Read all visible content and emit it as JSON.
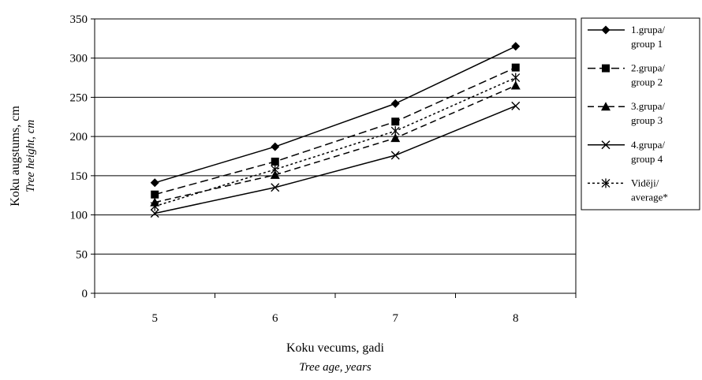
{
  "chart_data": {
    "type": "line",
    "x": [
      5,
      6,
      7,
      8
    ],
    "xlabel": "Koku vecums, gadi",
    "xlabel_sub": "Tree age, years",
    "ylabel": "Koku augstums, cm",
    "ylabel_sub": "Tree height, cm",
    "ylim": [
      0,
      350
    ],
    "yticks": [
      0,
      50,
      100,
      150,
      200,
      250,
      300,
      350
    ],
    "grid": "horizontal",
    "legend_position": "right",
    "series": [
      {
        "name_line1": "1.grupa/",
        "name_line2": "group 1",
        "values": [
          141,
          187,
          242,
          315
        ],
        "marker": "diamond",
        "dash": "solid",
        "color": "#000000"
      },
      {
        "name_line1": "2.grupa/",
        "name_line2": "group 2",
        "values": [
          126,
          168,
          219,
          288
        ],
        "marker": "square",
        "dash": "long-dash",
        "color": "#000000"
      },
      {
        "name_line1": "3.grupa/",
        "name_line2": "group 3",
        "values": [
          116,
          151,
          198,
          265
        ],
        "marker": "triangle",
        "dash": "dash",
        "color": "#000000"
      },
      {
        "name_line1": "4.grupa/",
        "name_line2": "group 4",
        "values": [
          102,
          135,
          176,
          239
        ],
        "marker": "x",
        "dash": "solid",
        "color": "#000000"
      },
      {
        "name_line1": "Vidēji/",
        "name_line2": "average*",
        "values": [
          111,
          158,
          207,
          275
        ],
        "marker": "asterisk",
        "dash": "dotted",
        "color": "#000000"
      }
    ]
  }
}
